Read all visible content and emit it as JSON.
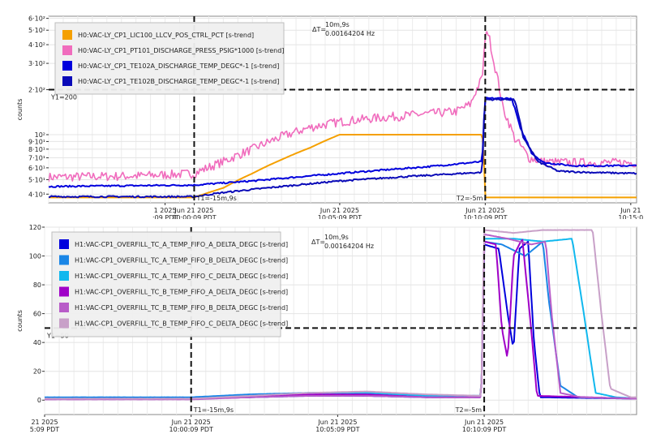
{
  "chart_data": [
    {
      "type": "line",
      "ylabel": "counts",
      "yscale": "log",
      "ylim": [
        35,
        620
      ],
      "y_ticks": [
        {
          "v": 40,
          "label": "4·10¹"
        },
        {
          "v": 50,
          "label": "5·10¹"
        },
        {
          "v": 60,
          "label": "6·10¹"
        },
        {
          "v": 70,
          "label": "7·10¹"
        },
        {
          "v": 80,
          "label": "8·10¹"
        },
        {
          "v": 90,
          "label": "9·10¹"
        },
        {
          "v": 100,
          "label": "10²"
        },
        {
          "v": 200,
          "label": "2·10²"
        },
        {
          "v": 300,
          "label": "3·10²"
        },
        {
          "v": 400,
          "label": "4·10²"
        },
        {
          "v": 500,
          "label": "5·10²"
        },
        {
          "v": 600,
          "label": "6·10²"
        }
      ],
      "x_ticks": [
        {
          "t": -1,
          "l1": "1 2025",
          "l2": ":09 PDT"
        },
        {
          "t": 0,
          "l1": "Jun 21 2025",
          "l2": "10:00:09 PDT"
        },
        {
          "t": 5,
          "l1": "Jun 21 2025",
          "l2": "10:05:09 PDT"
        },
        {
          "t": 10,
          "l1": "Jun 21 2025",
          "l2": "10:10:09 PDT"
        },
        {
          "t": 15,
          "l1": "Jun 21",
          "l2": "10:15:0"
        }
      ],
      "xlim": [
        -5,
        15.2
      ],
      "cursor_t1": {
        "t": 0,
        "label": "T1=-15m,9s"
      },
      "cursor_t2": {
        "t": 10,
        "label": "T2=-5m"
      },
      "cursor_y1": {
        "v": 200,
        "label": "Y1=200"
      },
      "delta": {
        "label": "ΔT=",
        "value": "10m,9s",
        "freq": "0.00164204 Hz"
      },
      "legend_placement": "top-left",
      "series": [
        {
          "name": "H0:VAC-LY_CP1_LIC100_LLCV_POS_CTRL_PCT [s-trend]",
          "color": "#f5a000",
          "kind": "fill_pct",
          "points": [
            [
              -5,
              38
            ],
            [
              0,
              38
            ],
            [
              1,
              44
            ],
            [
              2,
              55
            ],
            [
              3,
              68
            ],
            [
              4,
              82
            ],
            [
              5,
              100
            ],
            [
              9.9,
              100
            ],
            [
              10,
              38
            ],
            [
              15.2,
              38
            ]
          ]
        },
        {
          "name": "H0:VAC-LY_CP1_PT101_DISCHARGE_PRESS_PSIG*1000 [s-trend]",
          "color": "#f06cbd",
          "kind": "pressure",
          "points": [
            [
              -5,
              52
            ],
            [
              -2,
              53
            ],
            [
              0,
              55
            ],
            [
              1,
              66
            ],
            [
              2,
              80
            ],
            [
              3,
              97
            ],
            [
              4,
              112
            ],
            [
              5,
              122
            ],
            [
              6,
              128
            ],
            [
              7,
              133
            ],
            [
              8,
              138
            ],
            [
              9,
              143
            ],
            [
              9.5,
              160
            ],
            [
              9.9,
              240
            ],
            [
              10.05,
              520
            ],
            [
              10.3,
              300
            ],
            [
              10.6,
              150
            ],
            [
              11,
              95
            ],
            [
              11.5,
              70
            ],
            [
              12,
              66
            ],
            [
              13,
              65
            ],
            [
              15.2,
              65
            ]
          ]
        },
        {
          "name": "H0:VAC-LY_CP1_TE102A_DISCHARGE_TEMP_DEGC*-1 [s-trend]",
          "color": "#0000dd",
          "kind": "tempA",
          "points": [
            [
              -5,
              45
            ],
            [
              0,
              46
            ],
            [
              2,
              49
            ],
            [
              4,
              53
            ],
            [
              6,
              57
            ],
            [
              8,
              61
            ],
            [
              9.9,
              66
            ],
            [
              10,
              175
            ],
            [
              10.9,
              175
            ],
            [
              11.2,
              110
            ],
            [
              11.6,
              75
            ],
            [
              12,
              65
            ],
            [
              13,
              62
            ],
            [
              15.2,
              62
            ]
          ]
        },
        {
          "name": "H0:VAC-LY_CP1_TE102B_DISCHARGE_TEMP_DEGC*-1 [s-trend]",
          "color": "#0a0ab8",
          "kind": "tempB",
          "points": [
            [
              -5,
              38.5
            ],
            [
              0,
              38.5
            ],
            [
              1,
              41
            ],
            [
              3,
              45
            ],
            [
              5,
              49
            ],
            [
              7,
              52
            ],
            [
              9.9,
              56
            ],
            [
              10,
              172
            ],
            [
              11.0,
              172
            ],
            [
              11.3,
              95
            ],
            [
              11.8,
              66
            ],
            [
              12.5,
              57
            ],
            [
              13.5,
              56
            ],
            [
              15.2,
              55
            ]
          ]
        }
      ]
    },
    {
      "type": "line",
      "ylabel": "counts",
      "ylim": [
        -10,
        120
      ],
      "y_ticks": [
        {
          "v": 0,
          "label": "0"
        },
        {
          "v": 20,
          "label": "20"
        },
        {
          "v": 40,
          "label": "40"
        },
        {
          "v": 60,
          "label": "60"
        },
        {
          "v": 80,
          "label": "80"
        },
        {
          "v": 100,
          "label": "100"
        },
        {
          "v": 120,
          "label": "120"
        }
      ],
      "x_ticks": [
        {
          "t": -5,
          "l1": "21 2025",
          "l2": "5:09 PDT"
        },
        {
          "t": 0,
          "l1": "Jun 21 2025",
          "l2": "10:00:09 PDT"
        },
        {
          "t": 5,
          "l1": "Jun 21 2025",
          "l2": "10:05:09 PDT"
        },
        {
          "t": 10,
          "l1": "Jun 21 2025",
          "l2": "10:10:09 PDT"
        }
      ],
      "xlim": [
        -5,
        15.2
      ],
      "cursor_t1": {
        "t": 0,
        "label": "T1=-15m,9s"
      },
      "cursor_t2": {
        "t": 10,
        "label": "T2=-5m"
      },
      "cursor_y1": {
        "v": 50,
        "label": "Y1=50"
      },
      "delta": {
        "label": "ΔT=",
        "value": "10m,9s",
        "freq": "0.00164204 Hz"
      },
      "legend_placement": "top-left",
      "series": [
        {
          "name": "H1:VAC-CP1_OVERFILL_TC_A_TEMP_FIFO_A_DELTA_DEGC [s-trend]",
          "color": "#0000dd",
          "points": [
            [
              -5,
              1
            ],
            [
              0,
              1
            ],
            [
              2,
              2
            ],
            [
              4,
              3
            ],
            [
              6,
              3
            ],
            [
              8,
              2
            ],
            [
              9.9,
              2
            ],
            [
              10,
              108
            ],
            [
              10.5,
              105
            ],
            [
              10.8,
              60
            ],
            [
              11.0,
              35
            ],
            [
              11.2,
              105
            ],
            [
              11.5,
              110
            ],
            [
              11.7,
              40
            ],
            [
              11.9,
              2
            ],
            [
              15.2,
              1
            ]
          ]
        },
        {
          "name": "H1:VAC-CP1_OVERFILL_TC_A_TEMP_FIFO_B_DELTA_DEGC [s-trend]",
          "color": "#1a86e6",
          "points": [
            [
              -5,
              2
            ],
            [
              0,
              2
            ],
            [
              2,
              4
            ],
            [
              4,
              5
            ],
            [
              6,
              5
            ],
            [
              8,
              3
            ],
            [
              9.9,
              3
            ],
            [
              10,
              110
            ],
            [
              10.6,
              108
            ],
            [
              11.4,
              100
            ],
            [
              12.0,
              110
            ],
            [
              12.2,
              70
            ],
            [
              12.6,
              10
            ],
            [
              13.2,
              2
            ],
            [
              15.2,
              1
            ]
          ]
        },
        {
          "name": "H1:VAC-CP1_OVERFILL_TC_A_TEMP_FIFO_C_DELTA_DEGC [s-trend]",
          "color": "#10b8ee",
          "points": [
            [
              -5,
              1
            ],
            [
              0,
              1
            ],
            [
              2,
              3
            ],
            [
              4,
              5
            ],
            [
              6,
              5
            ],
            [
              8,
              3
            ],
            [
              9.9,
              3
            ],
            [
              10,
              112
            ],
            [
              11.0,
              112
            ],
            [
              12.0,
              110
            ],
            [
              13.0,
              112
            ],
            [
              13.4,
              60
            ],
            [
              13.8,
              5
            ],
            [
              14.5,
              2
            ],
            [
              15.2,
              1
            ]
          ]
        },
        {
          "name": "H1:VAC-CP1_OVERFILL_TC_B_TEMP_FIFO_A_DELTA_DEGC [s-trend]",
          "color": "#a000c8",
          "points": [
            [
              -5,
              1
            ],
            [
              0,
              1
            ],
            [
              2,
              2
            ],
            [
              4,
              4
            ],
            [
              6,
              4
            ],
            [
              8,
              2
            ],
            [
              9.9,
              2
            ],
            [
              10,
              110
            ],
            [
              10.4,
              108
            ],
            [
              10.6,
              50
            ],
            [
              10.8,
              28
            ],
            [
              11.0,
              100
            ],
            [
              11.3,
              112
            ],
            [
              11.6,
              50
            ],
            [
              11.8,
              3
            ],
            [
              15.2,
              1
            ]
          ]
        },
        {
          "name": "H1:VAC-CP1_OVERFILL_TC_B_TEMP_FIFO_B_DELTA_DEGC [s-trend]",
          "color": "#b85cc8",
          "points": [
            [
              -5,
              0.5
            ],
            [
              0,
              0.5
            ],
            [
              2,
              2
            ],
            [
              4,
              3
            ],
            [
              6,
              3
            ],
            [
              8,
              2
            ],
            [
              9.9,
              2
            ],
            [
              10,
              115
            ],
            [
              10.8,
              112
            ],
            [
              11.6,
              108
            ],
            [
              12.1,
              110
            ],
            [
              12.3,
              60
            ],
            [
              12.6,
              5
            ],
            [
              13.3,
              2
            ],
            [
              15.2,
              1
            ]
          ]
        },
        {
          "name": "H1:VAC-CP1_OVERFILL_TC_B_TEMP_FIFO_C_DELTA_DEGC [s-trend]",
          "color": "#c8a0c8",
          "points": [
            [
              -5,
              1
            ],
            [
              0,
              1
            ],
            [
              2,
              3
            ],
            [
              4,
              5
            ],
            [
              6,
              6
            ],
            [
              8,
              4
            ],
            [
              9.9,
              3
            ],
            [
              10,
              118
            ],
            [
              11.0,
              116
            ],
            [
              12.0,
              118
            ],
            [
              13.7,
              118
            ],
            [
              14.0,
              60
            ],
            [
              14.3,
              8
            ],
            [
              15.0,
              2
            ],
            [
              15.2,
              2
            ]
          ]
        }
      ]
    }
  ]
}
